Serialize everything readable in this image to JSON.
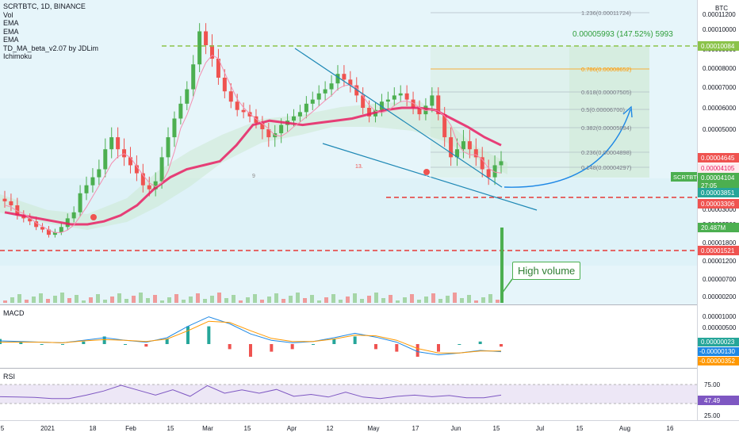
{
  "legend": {
    "title": "SCRTBTC, 1D, BINANCE",
    "items": [
      "Vol",
      "EMA",
      "EMA",
      "EMA",
      "TD_MA_beta_v2.07 by JDLim",
      "Ichimoku"
    ]
  },
  "axis_unit": "BTC",
  "price_axis_ticks": [
    "0.00011200",
    "0.00010000",
    "0.00009000",
    "0.00008000",
    "0.00007000",
    "0.00006000",
    "0.00005000",
    "0.00003000",
    "0.00002500",
    "0.00001800",
    "0.00001200",
    "0.00000700",
    "0.00000200"
  ],
  "price_labels": {
    "target": "0.00010084",
    "ema1": "0.00004645",
    "ema2": "0.00004105",
    "symbol": "SCRTBTC",
    "last_price": "0.00004104",
    "countdown": "27:05",
    "ema3": "0.00003851",
    "support": "0.00003306",
    "volume": "20.487M",
    "low_support": "0.00001521"
  },
  "fib_levels": [
    "1.236(0.00011724)",
    "0.786(0.00008652)",
    "0.618(0.00007505)",
    "0.5(0.00006700)",
    "0.382(0.00005894)",
    "0.236(0.00004898)",
    "0.148(0.00004297)"
  ],
  "measure_label": "0.00005993 (147.52%) 5993",
  "annotation": "High volume",
  "td_labels": [
    "9",
    "13.",
    "13"
  ],
  "macd": {
    "title": "MACD",
    "ticks": [
      "0.00001000",
      "0.00000500"
    ],
    "labels": [
      "0.00000023",
      "-0.00000130",
      "-0.00000352"
    ]
  },
  "rsi": {
    "title": "RSI",
    "ticks": [
      "75.00",
      "25.00"
    ],
    "value": "47.49"
  },
  "time_axis": [
    "5",
    "2021",
    "18",
    "Feb",
    "15",
    "Mar",
    "15",
    "Apr",
    "12",
    "May",
    "17",
    "Jun",
    "15",
    "Jul",
    "15",
    "Aug",
    "16"
  ],
  "colors": {
    "green": "#4caf50",
    "red": "#ef5350",
    "blue": "#1e88e5",
    "pink": "#e91e63",
    "target": "#8bc34a",
    "macd_orange": "#ff9800"
  },
  "chart_data": {
    "type": "candlestick",
    "x_range": [
      "2020-12-28",
      "2021-08-20"
    ],
    "ylim": [
      1.2e-05,
      0.000112
    ],
    "closes": [
      3.2e-05,
      3.1e-05,
      2.8e-05,
      2.7e-05,
      2.6e-05,
      2.4e-05,
      2.3e-05,
      2.1e-05,
      2.2e-05,
      2.4e-05,
      2.7e-05,
      2.9e-05,
      3.4e-05,
      3.6e-05,
      3.8e-05,
      4e-05,
      4.5e-05,
      4.8e-05,
      4.5e-05,
      4.3e-05,
      4.1e-05,
      3.9e-05,
      3.6e-05,
      3.5e-05,
      3.7e-05,
      4.3e-05,
      4.8e-05,
      5.5e-05,
      6.2e-05,
      6.9e-05,
      8.2e-05,
      9.9e-05,
      9.2e-05,
      8.5e-05,
      7.5e-05,
      6.8e-05,
      6.3e-05,
      5.9e-05,
      5.8e-05,
      5.6e-05,
      5.3e-05,
      5e-05,
      4.8e-05,
      4.9e-05,
      5.2e-05,
      5.4e-05,
      5.6e-05,
      5.8e-05,
      6.2e-05,
      6.4e-05,
      6.7e-05,
      6.9e-05,
      7.2e-05,
      7.7e-05,
      7.4e-05,
      7.1e-05,
      6.6e-05,
      6e-05,
      5.6e-05,
      5.9e-05,
      6.3e-05,
      6.4e-05,
      6.6e-05,
      6.7e-05,
      6.4e-05,
      6e-05,
      5.7e-05,
      6.1e-05,
      6.6e-05,
      5.7e-05,
      4.8e-05,
      4.3e-05,
      4.5e-05,
      4.7e-05,
      4.5e-05,
      4.3e-05,
      4e-05,
      3.8e-05,
      4.1e-05,
      4.2e-05
    ],
    "ema_pink": [
      2.9e-05,
      2.8e-05,
      2.7e-05,
      2.6e-05,
      2.5e-05,
      2.5e-05,
      2.6e-05,
      2.8e-05,
      3.1e-05,
      3.5e-05,
      3.8e-05,
      4e-05,
      4.1e-05,
      4.2e-05,
      4.6e-05,
      5.2e-05,
      5.4e-05,
      5.3e-05,
      5.2e-05,
      5.3e-05,
      5.4e-05,
      5.5e-05,
      5.7e-05,
      5.9e-05,
      6e-05,
      6e-05,
      5.9e-05,
      5.5e-05,
      5.1e-05,
      4.8e-05,
      4.6e-05
    ],
    "macd_line": [
      5e-07,
      4e-07,
      3e-07,
      2e-07,
      6e-07,
      1e-06,
      6e-07,
      3e-07,
      1e-06,
      2.8e-06,
      4.3e-06,
      3.2e-06,
      1.6e-06,
      6e-07,
      2e-07,
      4e-07,
      1e-06,
      1.7e-06,
      1.1e-06,
      3e-07,
      -1.2e-06,
      -1.7e-06,
      -1.4e-06,
      -1e-06,
      -1.2e-06
    ],
    "macd_signal": [
      3e-07,
      3e-07,
      3e-07,
      2e-07,
      5e-07,
      7e-07,
      6e-07,
      4e-07,
      8e-07,
      2.1e-06,
      3.6e-06,
      3.4e-06,
      2.1e-06,
      9e-07,
      4e-07,
      4e-07,
      8e-07,
      1.4e-06,
      1.3e-06,
      6e-07,
      -7e-07,
      -1.4e-06,
      -1.4e-06,
      -1.1e-06,
      -1.1e-06
    ],
    "rsi": [
      43,
      42,
      41,
      38,
      38,
      47,
      58,
      73,
      60,
      47,
      61,
      44,
      72,
      52,
      61,
      52,
      62,
      44,
      49,
      42,
      55,
      42,
      38,
      44,
      47,
      43,
      46,
      40,
      40,
      47
    ],
    "volume_spike": "20.487M"
  }
}
